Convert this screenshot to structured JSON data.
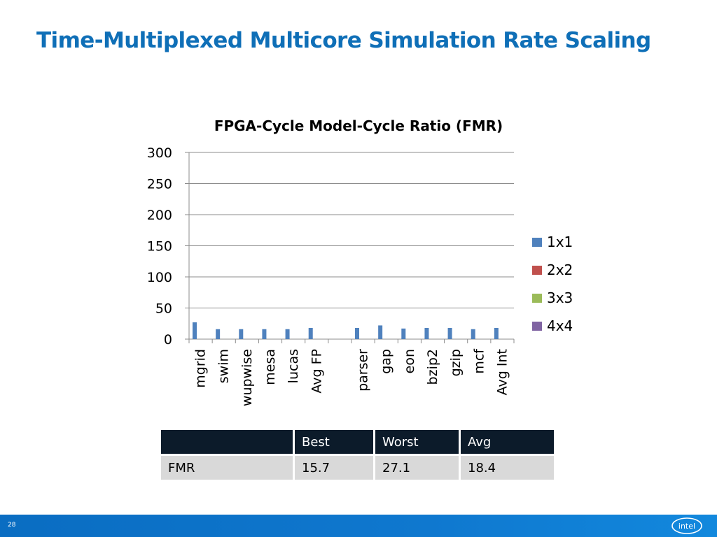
{
  "slide": {
    "title": "Time-Multiplexed Multicore Simulation Rate Scaling",
    "page_number": "28",
    "logo_text": "intel"
  },
  "colors": {
    "title": "#0f6fb7",
    "footer": "#0f78cf",
    "series_1x1": "#4f81bd",
    "series_2x2": "#c0504d",
    "series_3x3": "#9bbb59",
    "series_4x4": "#8064a2"
  },
  "chart_data": {
    "type": "bar",
    "title": "FPGA-Cycle Model-Cycle Ratio (FMR)",
    "categories": [
      "mgrid",
      "swim",
      "wupwise",
      "mesa",
      "lucas",
      "Avg FP",
      "",
      "parser",
      "gap",
      "eon",
      "bzip2",
      "gzip",
      "mcf",
      "Avg Int"
    ],
    "series": [
      {
        "name": "1x1",
        "color": "#4f81bd",
        "values": [
          27,
          16,
          16,
          16,
          16,
          18,
          null,
          18,
          22,
          17,
          18,
          18,
          16,
          18
        ]
      },
      {
        "name": "2x2",
        "color": "#c0504d",
        "values": [
          null,
          null,
          null,
          null,
          null,
          null,
          null,
          null,
          null,
          null,
          null,
          null,
          null,
          null
        ]
      },
      {
        "name": "3x3",
        "color": "#9bbb59",
        "values": [
          null,
          null,
          null,
          null,
          null,
          null,
          null,
          null,
          null,
          null,
          null,
          null,
          null,
          null
        ]
      },
      {
        "name": "4x4",
        "color": "#8064a2",
        "values": [
          null,
          null,
          null,
          null,
          null,
          null,
          null,
          null,
          null,
          null,
          null,
          null,
          null,
          null
        ]
      }
    ],
    "ylim": [
      0,
      300
    ],
    "yticks": [
      0,
      50,
      100,
      150,
      200,
      250,
      300
    ],
    "grid": true,
    "legend": "right"
  },
  "summary_table": {
    "headers": [
      "",
      "Best",
      "Worst",
      "Avg"
    ],
    "rows": [
      [
        "FMR",
        "15.7",
        "27.1",
        "18.4"
      ]
    ]
  }
}
